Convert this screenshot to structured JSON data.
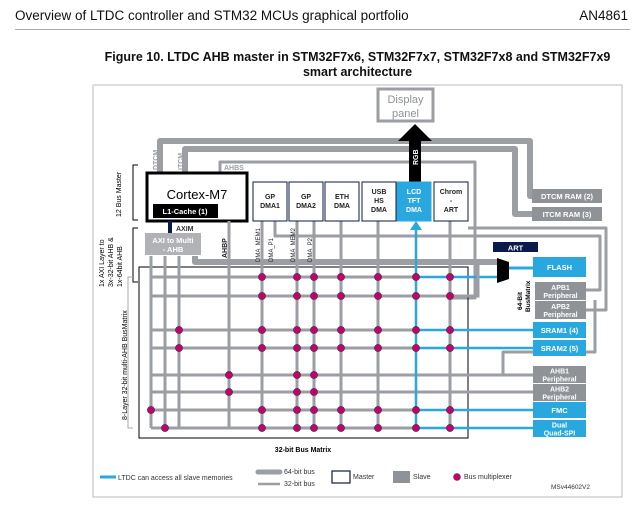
{
  "header": {
    "section_title": "Overview of LTDC controller and STM32 MCUs graphical portfolio",
    "doc_id": "AN4861"
  },
  "figure": {
    "title_line1": "Figure 10. LTDC AHB master in STM32F7x6, STM32F7x7, STM32F7x8 and STM32F7x9",
    "title_line2": "smart architecture",
    "display": {
      "line1": "Display",
      "line2": "panel"
    },
    "rgb_label": "RGB",
    "cpu": {
      "name": "Cortex-M7",
      "cache": "L1-Cache (1)"
    },
    "bus_labels": {
      "dtcm1": "DTCM",
      "itcm": "ITCM",
      "ahbs": "AHBS",
      "axim": "AXIM",
      "ahbp": "AHBP",
      "dma_mem1": "DMA_MEM1",
      "dma_p1": "DMA_P1",
      "dma_mem2": "DMA_MEM2",
      "dma_p2": "DMA_P2"
    },
    "axi_bridge": {
      "line1": "AXI to Multi",
      "line2": "- AHB"
    },
    "masters": [
      {
        "line1": "GP",
        "line2": "DMA1",
        "line3": ""
      },
      {
        "line1": "GP",
        "line2": "DMA2",
        "line3": ""
      },
      {
        "line1": "ETH",
        "line2": "DMA",
        "line3": ""
      },
      {
        "line1": "USB",
        "line2": "HS",
        "line3": "DMA"
      },
      {
        "line1": "LCD",
        "line2": "TFT",
        "line3": "DMA"
      },
      {
        "line1": "Chrom",
        "line2": "-",
        "line3": "ART"
      }
    ],
    "slaves": {
      "dtcm_ram": "DTCM RAM (2)",
      "itcm_ram": "ITCM RAM (3)",
      "art": "ART",
      "flash": "FLASH",
      "apb1": {
        "line1": "APB1",
        "line2": "Peripheral"
      },
      "apb2": {
        "line1": "APB2",
        "line2": "Peripheral"
      },
      "sram1": "SRAM1 (4)",
      "sram2": "SRAM2 (5)",
      "ahb1": {
        "line1": "AHB1",
        "line2": "Peripheral"
      },
      "ahb2": {
        "line1": "AHB2",
        "line2": "Peripheral"
      },
      "fmc": "FMC",
      "qspi": {
        "line1": "Dual",
        "line2": "Quad-SPI"
      }
    },
    "side_labels": {
      "bus_master": "12 Bus Master",
      "axi_l1": "1x AXI Layer to",
      "axi_l2": "3x-32-bit AHB &",
      "axi_l3": "1x-64bit AHB",
      "multi_ahb": "8-Layer 32-bit multi-AHB BusMatrix",
      "bm64_l1": "64-Bit",
      "bm64_l2": "BusMatrix",
      "matrix32": "32-bit Bus Matrix"
    },
    "legend": {
      "ltdc": "LTDC can access all slave memories",
      "bus64": "64-bit bus",
      "bus32": "32-bit bus",
      "master": "Master",
      "slave": "Slave",
      "mux": "Bus multiplexer"
    },
    "ref_code": "MSv44602V2",
    "colors": {
      "bus": "#9b9ea3",
      "ltdc_blue": "#29a8e0",
      "mux": "#c8006e",
      "slave_gray": "#8f9296",
      "art_navy": "#0b1a4a"
    }
  }
}
